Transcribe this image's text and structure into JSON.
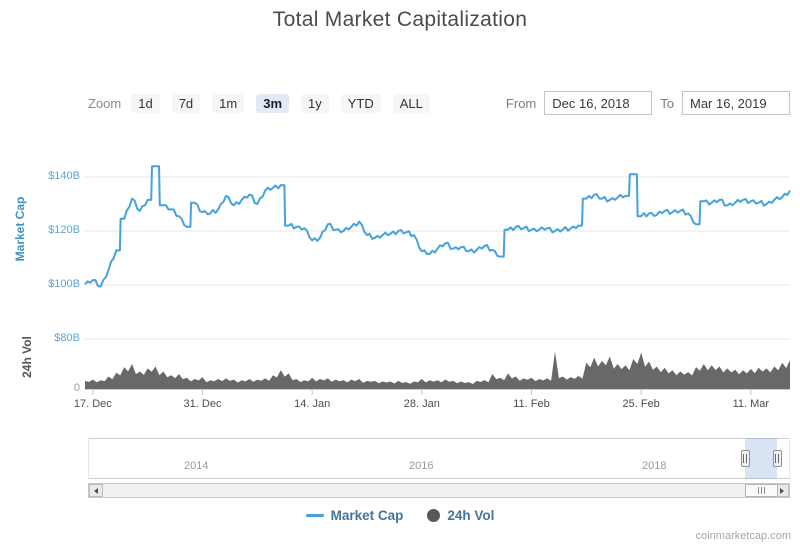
{
  "title": "Total Market Capitalization",
  "toolbar": {
    "zoom_label": "Zoom",
    "zoom_buttons": [
      {
        "label": "1d",
        "selected": false
      },
      {
        "label": "7d",
        "selected": false
      },
      {
        "label": "1m",
        "selected": false
      },
      {
        "label": "3m",
        "selected": true
      },
      {
        "label": "1y",
        "selected": false
      },
      {
        "label": "YTD",
        "selected": false
      },
      {
        "label": "ALL",
        "selected": false
      }
    ],
    "from_label": "From",
    "from_value": "Dec 16, 2018",
    "to_label": "To",
    "to_value": "Mar 16, 2019"
  },
  "chart_data": {
    "type": "line+area",
    "title": "Total Market Capitalization",
    "start_date": "2018-12-16",
    "end_date": "2019-03-16",
    "interval": "daily",
    "unit": "USD billions",
    "series": [
      {
        "name": "Market Cap",
        "type": "line",
        "values": [
          100.3,
          101.8,
          99.5,
          105.5,
          112.8,
          124.5,
          132.0,
          127.5,
          131.5,
          144.0,
          129.5,
          128.0,
          125.5,
          121.5,
          130.5,
          127.0,
          126.5,
          128.0,
          133.0,
          129.5,
          131.5,
          133.5,
          130.0,
          135.0,
          136.0,
          137.0,
          122.0,
          121.5,
          121.0,
          116.5,
          117.5,
          122.5,
          120.5,
          120.0,
          121.5,
          123.5,
          118.5,
          117.5,
          118.5,
          119.0,
          120.0,
          119.5,
          118.5,
          112.5,
          111.5,
          113.5,
          115.5,
          113.5,
          114.0,
          112.5,
          113.0,
          114.5,
          113.0,
          110.5,
          120.5,
          121.5,
          121.0,
          120.5,
          120.5,
          121.0,
          120.0,
          120.5,
          121.0,
          122.0,
          132.0,
          133.5,
          132.0,
          131.5,
          132.5,
          133.0,
          141.0,
          125.5,
          126.5,
          126.0,
          127.5,
          127.0,
          127.5,
          126.5,
          122.5,
          131.0,
          130.5,
          131.5,
          129.5,
          130.5,
          131.5,
          131.0,
          130.5,
          130.0,
          131.5,
          132.5,
          135.0
        ]
      },
      {
        "name": "24h Vol",
        "type": "area",
        "values": [
          13,
          15,
          14,
          20,
          26,
          35,
          40,
          28,
          33,
          36,
          28,
          22,
          24,
          18,
          16,
          19,
          14,
          16,
          17,
          15,
          14,
          16,
          15,
          17,
          22,
          30,
          25,
          16,
          14,
          18,
          16,
          17,
          15,
          14,
          15,
          16,
          13,
          13,
          12,
          12,
          13,
          11,
          12,
          16,
          14,
          14,
          15,
          13,
          12,
          11,
          13,
          14,
          24,
          18,
          25,
          20,
          17,
          18,
          16,
          17,
          60,
          20,
          19,
          21,
          42,
          50,
          45,
          52,
          40,
          38,
          48,
          58,
          44,
          36,
          34,
          30,
          28,
          27,
          35,
          40,
          38,
          36,
          33,
          31,
          30,
          32,
          34,
          33,
          36,
          42,
          46
        ]
      }
    ],
    "x_ticks": [
      {
        "label": "17. Dec",
        "day": 1
      },
      {
        "label": "31. Dec",
        "day": 15
      },
      {
        "label": "14. Jan",
        "day": 29
      },
      {
        "label": "28. Jan",
        "day": 43
      },
      {
        "label": "11. Feb",
        "day": 57
      },
      {
        "label": "25. Feb",
        "day": 71
      },
      {
        "label": "11. Mar",
        "day": 85
      }
    ],
    "y_axis_market_cap": {
      "title": "Market Cap",
      "tick_labels": [
        "$140B",
        "$120B",
        "$100B",
        "$80B"
      ],
      "tick_values": [
        140,
        120,
        100,
        80
      ]
    },
    "y_axis_volume": {
      "title": "24h Vol",
      "tick_labels": [
        "0"
      ],
      "tick_values": [
        0
      ],
      "max": 80
    },
    "grid": "horizontal",
    "legend_position": "bottom"
  },
  "navigator": {
    "year_labels": [
      "2014",
      "2016",
      "2018"
    ],
    "selection": {
      "from": "Dec 16, 2018",
      "to": "Mar 16, 2019"
    }
  },
  "legend": {
    "items": [
      {
        "label": "Market Cap",
        "marker": "line"
      },
      {
        "label": "24h Vol",
        "marker": "circle"
      }
    ]
  },
  "attribution": "coinmarketcap.com",
  "colors": {
    "market_cap_line": "#45a2dc",
    "volume_area": "#686868",
    "axis_label_blue": "#5aa7d8",
    "mc_axis_title_blue": "#3f93c8",
    "volume_zero_label": "#999999",
    "selected_zoom_bg": "#e4eaf5",
    "legend_text": "#45749c",
    "gridline": "#e7e7e7",
    "navigator_selection": "rgba(125,165,215,0.30)"
  }
}
